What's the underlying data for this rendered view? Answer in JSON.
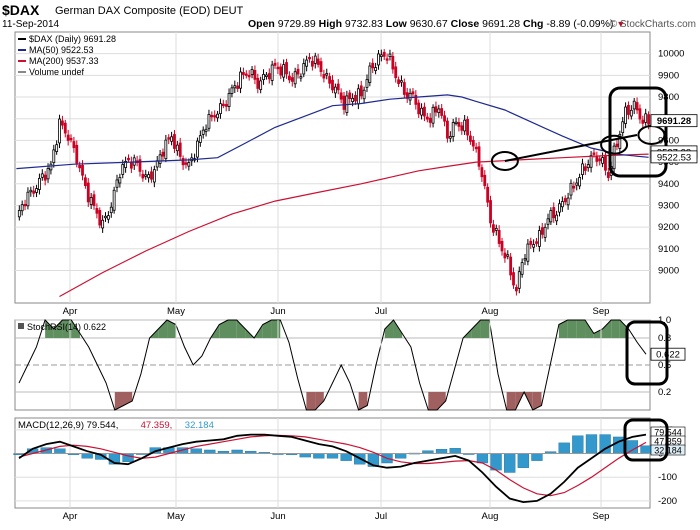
{
  "header": {
    "symbol": "$DAX",
    "name": "German DAX Composite (EOD)",
    "exchange": "DEUT",
    "date": "11-Sep-2014",
    "open_label": "Open",
    "open": "9729.89",
    "high_label": "High",
    "high": "9732.83",
    "low_label": "Low",
    "low": "9630.67",
    "close_label": "Close",
    "close": "9691.28",
    "chg_label": "Chg",
    "chg": "-8.89 (-0.09%)",
    "brand": "© StockCharts.com"
  },
  "colors": {
    "up": "#000000",
    "down": "#cc0022",
    "ma50": "#1f2a8f",
    "ma200": "#cc1133",
    "stoch_fill_hi": "#5f8f5f",
    "stoch_fill_lo": "#a06060",
    "hist": "#3399cc",
    "macd": "#000000",
    "signal": "#cc1133",
    "grid": "#dddddd"
  },
  "chart_data": [
    {
      "type": "candlestick",
      "title": "$DAX (Daily) 9691.28",
      "legend": [
        {
          "name": "$DAX (Daily) 9691.28",
          "color": "#000000"
        },
        {
          "name": "MA(50) 9522.53",
          "color": "#1f2a8f"
        },
        {
          "name": "MA(200) 9537.33",
          "color": "#cc1133"
        },
        {
          "name": "Volume undef",
          "color": "#888888"
        }
      ],
      "ylim": [
        8850,
        10100
      ],
      "yticks": [
        "9000",
        "9100",
        "9200",
        "9300",
        "9400",
        "9500",
        "9600",
        "9700",
        "9800",
        "9900",
        "10000"
      ],
      "xticks": [
        "Apr",
        "May",
        "Jun",
        "Jul",
        "Aug",
        "Sep"
      ],
      "price_labels": [
        {
          "text": "9691.28",
          "y": 9691
        },
        {
          "text": "9537.33",
          "y": 9547
        },
        {
          "text": "9522.53",
          "y": 9524
        }
      ],
      "anchors": [
        [
          0,
          9235
        ],
        [
          3,
          9330
        ],
        [
          6,
          9370
        ],
        [
          9,
          9430
        ],
        [
          12,
          9480
        ],
        [
          15,
          9680
        ],
        [
          18,
          9620
        ],
        [
          21,
          9520
        ],
        [
          24,
          9380
        ],
        [
          27,
          9290
        ],
        [
          30,
          9210
        ],
        [
          33,
          9300
        ],
        [
          36,
          9460
        ],
        [
          39,
          9510
        ],
        [
          42,
          9490
        ],
        [
          45,
          9420
        ],
        [
          48,
          9460
        ],
        [
          51,
          9560
        ],
        [
          54,
          9620
        ],
        [
          57,
          9520
        ],
        [
          60,
          9480
        ],
        [
          63,
          9580
        ],
        [
          66,
          9680
        ],
        [
          69,
          9720
        ],
        [
          72,
          9760
        ],
        [
          75,
          9830
        ],
        [
          78,
          9890
        ],
        [
          81,
          9920
        ],
        [
          84,
          9860
        ],
        [
          87,
          9900
        ],
        [
          90,
          9940
        ],
        [
          93,
          9920
        ],
        [
          96,
          9880
        ],
        [
          99,
          9920
        ],
        [
          102,
          9980
        ],
        [
          105,
          9950
        ],
        [
          108,
          9880
        ],
        [
          111,
          9840
        ],
        [
          114,
          9770
        ],
        [
          117,
          9800
        ],
        [
          120,
          9810
        ],
        [
          123,
          9920
        ],
        [
          126,
          9980
        ],
        [
          129,
          10000
        ],
        [
          132,
          9900
        ],
        [
          135,
          9820
        ],
        [
          138,
          9800
        ],
        [
          141,
          9720
        ],
        [
          144,
          9700
        ],
        [
          147,
          9760
        ],
        [
          150,
          9620
        ],
        [
          153,
          9680
        ],
        [
          156,
          9660
        ],
        [
          159,
          9580
        ],
        [
          162,
          9450
        ],
        [
          165,
          9230
        ],
        [
          168,
          9130
        ],
        [
          171,
          9040
        ],
        [
          174,
          8900
        ],
        [
          176,
          9050
        ],
        [
          179,
          9120
        ],
        [
          182,
          9150
        ],
        [
          185,
          9240
        ],
        [
          188,
          9270
        ],
        [
          191,
          9330
        ],
        [
          194,
          9390
        ],
        [
          197,
          9460
        ],
        [
          200,
          9520
        ],
        [
          203,
          9520
        ],
        [
          206,
          9440
        ],
        [
          209,
          9590
        ],
        [
          212,
          9730
        ],
        [
          215,
          9760
        ],
        [
          218,
          9690
        ],
        [
          220,
          9690
        ]
      ],
      "ma50_points": [
        [
          0,
          9470
        ],
        [
          20,
          9490
        ],
        [
          40,
          9500
        ],
        [
          60,
          9510
        ],
        [
          70,
          9520
        ],
        [
          80,
          9590
        ],
        [
          90,
          9660
        ],
        [
          100,
          9710
        ],
        [
          110,
          9760
        ],
        [
          120,
          9770
        ],
        [
          130,
          9790
        ],
        [
          140,
          9800
        ],
        [
          150,
          9810
        ],
        [
          155,
          9800
        ],
        [
          160,
          9780
        ],
        [
          170,
          9740
        ],
        [
          180,
          9680
        ],
        [
          190,
          9620
        ],
        [
          200,
          9565
        ],
        [
          210,
          9535
        ],
        [
          220,
          9522
        ]
      ],
      "ma200_points": [
        [
          15,
          8880
        ],
        [
          30,
          8990
        ],
        [
          45,
          9090
        ],
        [
          60,
          9180
        ],
        [
          75,
          9260
        ],
        [
          90,
          9320
        ],
        [
          105,
          9360
        ],
        [
          120,
          9400
        ],
        [
          130,
          9430
        ],
        [
          140,
          9460
        ],
        [
          150,
          9480
        ],
        [
          160,
          9500
        ],
        [
          175,
          9510
        ],
        [
          190,
          9520
        ],
        [
          205,
          9530
        ],
        [
          220,
          9537
        ]
      ],
      "annotations": {
        "trendline": [
          [
            170,
            9505
          ],
          [
            216,
            9625
          ]
        ],
        "ellipses": [
          [
            170,
            9505
          ],
          [
            208,
            9580
          ],
          [
            221,
            9625
          ]
        ]
      }
    },
    {
      "type": "line",
      "title": "StochRSI(14) 0.622",
      "ylim": [
        0,
        1
      ],
      "yticks": [
        "0.2",
        "0.5",
        "0.8",
        "1.0"
      ],
      "value_label": "0.622",
      "series": [
        {
          "name": "StochRSI(14)",
          "values": [
            0.3,
            0.5,
            0.7,
            1.0,
            0.9,
            1.0,
            1.0,
            0.85,
            0.7,
            0.5,
            0.3,
            0.0,
            0.05,
            0.1,
            0.4,
            0.8,
            0.9,
            1.0,
            0.95,
            0.7,
            0.5,
            0.6,
            0.8,
            0.95,
            1.0,
            1.0,
            0.9,
            0.8,
            0.95,
            1.0,
            1.0,
            0.75,
            0.35,
            0.0,
            0.0,
            0.1,
            0.3,
            0.5,
            0.3,
            0.0,
            0.05,
            0.5,
            0.9,
            1.0,
            0.85,
            0.7,
            0.3,
            0.0,
            0.0,
            0.1,
            0.45,
            0.8,
            0.9,
            1.0,
            1.0,
            0.4,
            0.0,
            0.0,
            0.2,
            0.0,
            0.05,
            0.5,
            0.95,
            1.0,
            1.0,
            1.0,
            0.85,
            0.9,
            1.0,
            1.0,
            0.9,
            0.75,
            0.62
          ]
        }
      ]
    },
    {
      "type": "bar+line",
      "title": "MACD(12,26,9) 79.544, 47.359, 32.184",
      "legend": [
        {
          "name": "MACD(12,26,9) 79.544,",
          "color": "#000000"
        },
        {
          "name": "47.359,",
          "color": "#cc1133"
        },
        {
          "name": "32.184",
          "color": "#3399cc"
        }
      ],
      "ylim": [
        -230,
        150
      ],
      "yticks": [
        "-200",
        "-100",
        "0",
        "100"
      ],
      "value_labels": [
        "79.544",
        "47.359",
        "32.184"
      ],
      "macd": [
        -20,
        20,
        40,
        50,
        30,
        10,
        -5,
        -40,
        -45,
        -20,
        10,
        25,
        40,
        50,
        55,
        60,
        75,
        80,
        80,
        75,
        70,
        55,
        40,
        30,
        10,
        -20,
        -50,
        -60,
        -55,
        -40,
        -30,
        -20,
        -10,
        -30,
        -80,
        -140,
        -190,
        -205,
        -200,
        -170,
        -120,
        -60,
        -20,
        20,
        50,
        70,
        80
      ],
      "signal": [
        -15,
        0,
        15,
        30,
        35,
        30,
        20,
        5,
        -10,
        -20,
        -15,
        0,
        15,
        30,
        40,
        50,
        60,
        70,
        75,
        77,
        75,
        70,
        60,
        50,
        40,
        25,
        5,
        -20,
        -35,
        -42,
        -42,
        -38,
        -32,
        -30,
        -40,
        -70,
        -110,
        -145,
        -170,
        -178,
        -165,
        -135,
        -100,
        -60,
        -20,
        15,
        47
      ]
    }
  ]
}
